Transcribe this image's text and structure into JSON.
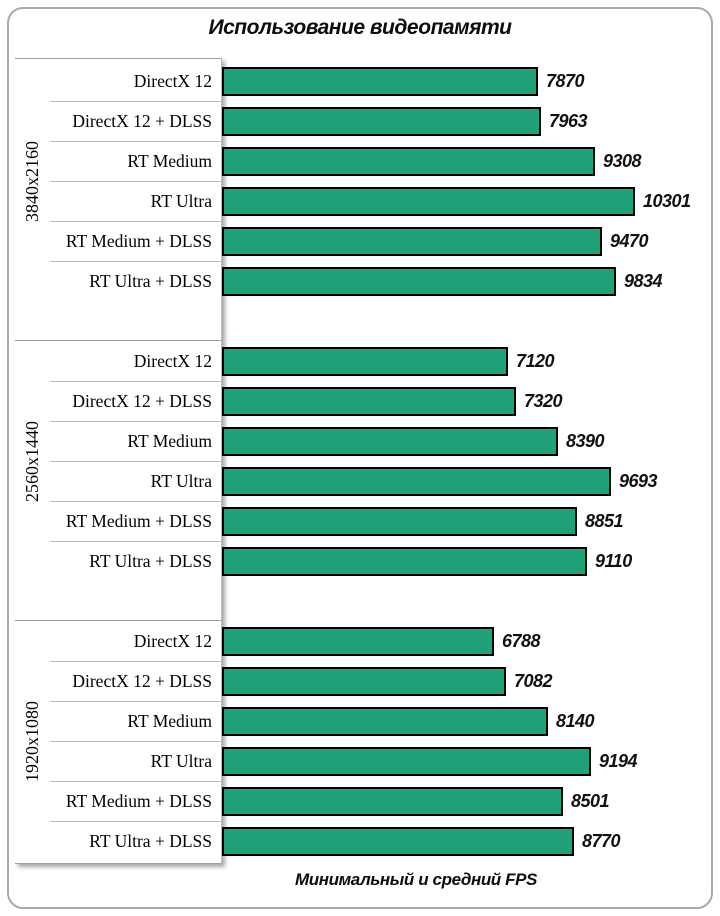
{
  "title": "Использование видеопамяти",
  "xlabel": "Минимальный и средний FPS",
  "colors": {
    "bar_fill": "#21a179",
    "bar_border": "#000000",
    "separator": "#b8b8b8",
    "frame_border": "#a9a9a9"
  },
  "chart_data": {
    "type": "bar",
    "orientation": "horizontal",
    "title": "Использование видеопамяти",
    "xlabel": "Минимальный и средний FPS",
    "xlim": [
      0,
      12000
    ],
    "grid": false,
    "legend": false,
    "categories": [
      "DirectX 12",
      "DirectX 12 + DLSS",
      "RT Medium",
      "RT Ultra",
      "RT Medium + DLSS",
      "RT Ultra + DLSS"
    ],
    "groups": [
      {
        "resolution": "3840x2160",
        "values": [
          7870,
          7963,
          9308,
          10301,
          9470,
          9834
        ]
      },
      {
        "resolution": "2560x1440",
        "values": [
          7120,
          7320,
          8390,
          9693,
          8851,
          9110
        ]
      },
      {
        "resolution": "1920x1080",
        "values": [
          6788,
          7082,
          8140,
          9194,
          8501,
          8770
        ]
      }
    ]
  }
}
